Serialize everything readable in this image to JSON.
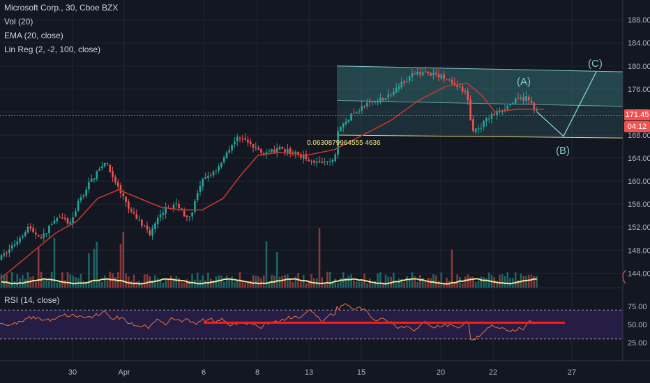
{
  "legend": {
    "symbol_line": "Microsoft Corp., 30, Cboe BZX",
    "volume": "Vol (20)",
    "ema": "EMA (20, close)",
    "linreg": "Lin Reg (2, -2, 100, close)"
  },
  "rsi_legend": "RSI (14, close)",
  "price_tags": {
    "last_price": "171.45",
    "countdown": "04:12"
  },
  "annotations": {
    "fib_value": "0.0630879964555 4636",
    "wave_a": "(A)",
    "wave_b": "(B)",
    "wave_c": "(C)"
  },
  "colors": {
    "background": "#131722",
    "up": "#26a69a",
    "down": "#ef5350",
    "ema": "#c0392b",
    "volume_ma": "#f0e68c",
    "channel": "#7fc8c8",
    "rsi_line": "#e8743b",
    "rsi_band": "#2a1f4a",
    "rsi_hline": "#ff1a1a",
    "price_line": "#ef5350"
  },
  "chart_data": {
    "type": "candlestick",
    "price_axis": {
      "ticks": [
        144.0,
        148.0,
        152.0,
        156.0,
        160.0,
        164.0,
        168.0,
        172.0,
        176.0,
        180.0,
        184.0,
        188.0
      ],
      "range": [
        141.5,
        190.5
      ]
    },
    "time_axis": {
      "labels": [
        "30",
        "Apr",
        "6",
        "8",
        "13",
        "15",
        "20",
        "22",
        "27"
      ]
    },
    "last_price": 171.45,
    "price_path": [
      [
        0,
        146.5
      ],
      [
        20,
        149
      ],
      [
        40,
        152
      ],
      [
        60,
        150
      ],
      [
        80,
        154
      ],
      [
        100,
        152.5
      ],
      [
        115,
        157
      ],
      [
        130,
        160
      ],
      [
        150,
        163.5
      ],
      [
        165,
        160
      ],
      [
        185,
        155
      ],
      [
        200,
        153
      ],
      [
        215,
        151
      ],
      [
        235,
        155
      ],
      [
        255,
        156
      ],
      [
        270,
        153
      ],
      [
        290,
        160
      ],
      [
        310,
        162
      ],
      [
        330,
        166
      ],
      [
        345,
        168
      ],
      [
        360,
        166
      ],
      [
        380,
        165
      ],
      [
        400,
        165.5
      ],
      [
        420,
        165
      ],
      [
        440,
        164
      ],
      [
        460,
        163
      ],
      [
        480,
        163.5
      ],
      [
        483,
        168.5
      ],
      [
        500,
        171
      ],
      [
        520,
        173
      ],
      [
        540,
        174
      ],
      [
        560,
        175
      ],
      [
        580,
        177.5
      ],
      [
        600,
        179
      ],
      [
        620,
        178.5
      ],
      [
        640,
        178
      ],
      [
        660,
        176
      ],
      [
        670,
        175
      ],
      [
        676,
        169
      ],
      [
        685,
        169
      ],
      [
        700,
        171
      ],
      [
        720,
        172.5
      ],
      [
        740,
        174
      ],
      [
        755,
        174.5
      ],
      [
        770,
        172
      ]
    ],
    "ema_path": [
      [
        0,
        143
      ],
      [
        40,
        147
      ],
      [
        80,
        151
      ],
      [
        110,
        153
      ],
      [
        140,
        157
      ],
      [
        170,
        158.5
      ],
      [
        200,
        157
      ],
      [
        230,
        155.5
      ],
      [
        260,
        155
      ],
      [
        290,
        155
      ],
      [
        320,
        157
      ],
      [
        345,
        161
      ],
      [
        370,
        164.5
      ],
      [
        400,
        165
      ],
      [
        440,
        164.5
      ],
      [
        480,
        165.5
      ],
      [
        520,
        168
      ],
      [
        560,
        170.5
      ],
      [
        600,
        174
      ],
      [
        640,
        176.5
      ],
      [
        670,
        177
      ],
      [
        690,
        175
      ],
      [
        710,
        172
      ],
      [
        740,
        172.5
      ],
      [
        780,
        172.5
      ]
    ],
    "channel": {
      "upper": [
        [
          483,
          180
        ],
        [
          893,
          179
        ]
      ],
      "mid": [
        [
          483,
          174
        ],
        [
          893,
          173
        ]
      ],
      "lower": [
        [
          483,
          168
        ],
        [
          893,
          167.5
        ]
      ]
    },
    "wave_projection": [
      [
        770,
        172
      ],
      [
        808,
        167.8
      ],
      [
        855,
        179
      ]
    ],
    "rsi": {
      "range": [
        0,
        100
      ],
      "ticks": [
        25.0,
        50.0,
        75.0
      ],
      "overbought": 70,
      "oversold": 30,
      "level_line": 52.5
    }
  }
}
